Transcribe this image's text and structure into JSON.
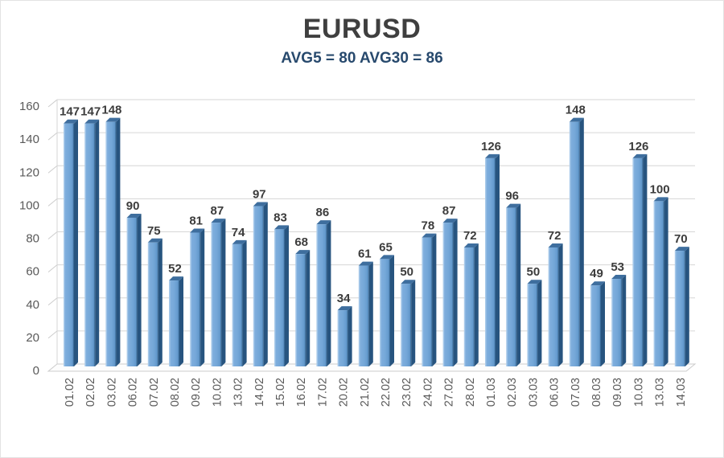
{
  "title": "EURUSD",
  "subtitle": "AVG5 = 80 AVG30 = 86",
  "chart_data": {
    "type": "bar",
    "title": "EURUSD",
    "subtitle": "AVG5 = 80 AVG30 = 86",
    "categories": [
      "01.02",
      "02.02",
      "03.02",
      "06.02",
      "07.02",
      "08.02",
      "09.02",
      "10.02",
      "13.02",
      "14.02",
      "15.02",
      "16.02",
      "17.02",
      "20.02",
      "21.02",
      "22.02",
      "23.02",
      "24.02",
      "27.02",
      "28.02",
      "01.03",
      "02.03",
      "03.03",
      "06.03",
      "07.03",
      "08.03",
      "09.03",
      "10.03",
      "13.03",
      "14.03"
    ],
    "values": [
      147,
      147,
      148,
      90,
      75,
      52,
      81,
      87,
      74,
      97,
      83,
      68,
      86,
      34,
      61,
      65,
      50,
      78,
      87,
      72,
      126,
      96,
      50,
      72,
      148,
      49,
      53,
      126,
      100,
      70
    ],
    "xlabel": "",
    "ylabel": "",
    "ylim": [
      0,
      160
    ],
    "yticks": [
      0,
      20,
      40,
      60,
      80,
      100,
      120,
      140,
      160
    ],
    "grid": true,
    "legend": false,
    "bar_style": "3d-column",
    "avg5": 80,
    "avg30": 86
  },
  "colors": {
    "title": "#3f3f3f",
    "subtitle": "#27496d",
    "axis_label": "#595959",
    "value_label": "#3c3c3c",
    "gridline": "#d6d6d6",
    "wall_slant": "#cccccc",
    "bar_face_light": "#aacbea",
    "bar_face_mid": "#74a7d8",
    "bar_face_dark": "#3f719f",
    "bar_edge": "#27547f",
    "bar_top": "#3e6e9e",
    "floor_fill": "#fdfdfd",
    "floor_stroke": "#cccccc"
  }
}
